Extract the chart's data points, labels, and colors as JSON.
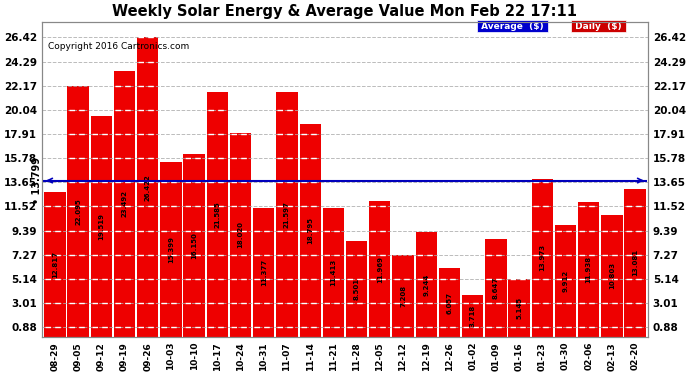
{
  "title": "Weekly Solar Energy & Average Value Mon Feb 22 17:11",
  "copyright": "Copyright 2016 Cartronics.com",
  "categories": [
    "08-29",
    "09-05",
    "09-12",
    "09-19",
    "09-26",
    "10-03",
    "10-10",
    "10-17",
    "10-24",
    "10-31",
    "11-07",
    "11-14",
    "11-21",
    "11-28",
    "12-05",
    "12-12",
    "12-19",
    "12-26",
    "01-02",
    "01-09",
    "01-16",
    "01-23",
    "01-30",
    "02-06",
    "02-13",
    "02-20"
  ],
  "values": [
    12.817,
    22.095,
    19.519,
    23.492,
    26.422,
    15.399,
    16.15,
    21.585,
    18.02,
    11.377,
    21.597,
    18.795,
    11.413,
    8.501,
    11.969,
    7.208,
    9.244,
    6.057,
    3.718,
    8.647,
    5.145,
    13.973,
    9.912,
    11.938,
    10.803,
    13.081
  ],
  "average_value": 13.799,
  "bar_color": "#ee0000",
  "average_line_color": "#0000bb",
  "background_color": "#ffffff",
  "grid_color": "#aaaaaa",
  "yticks": [
    0.88,
    3.01,
    5.14,
    7.27,
    9.39,
    11.52,
    13.65,
    15.78,
    17.91,
    20.04,
    22.17,
    24.29,
    26.42
  ],
  "ylim": [
    0,
    27.8
  ],
  "legend_avg_bg": "#0000cc",
  "legend_daily_bg": "#cc0000",
  "value_label_fontsize": 5.0,
  "ytick_fontsize": 7.5,
  "xtick_fontsize": 6.5,
  "title_fontsize": 10.5,
  "copyright_fontsize": 6.5
}
